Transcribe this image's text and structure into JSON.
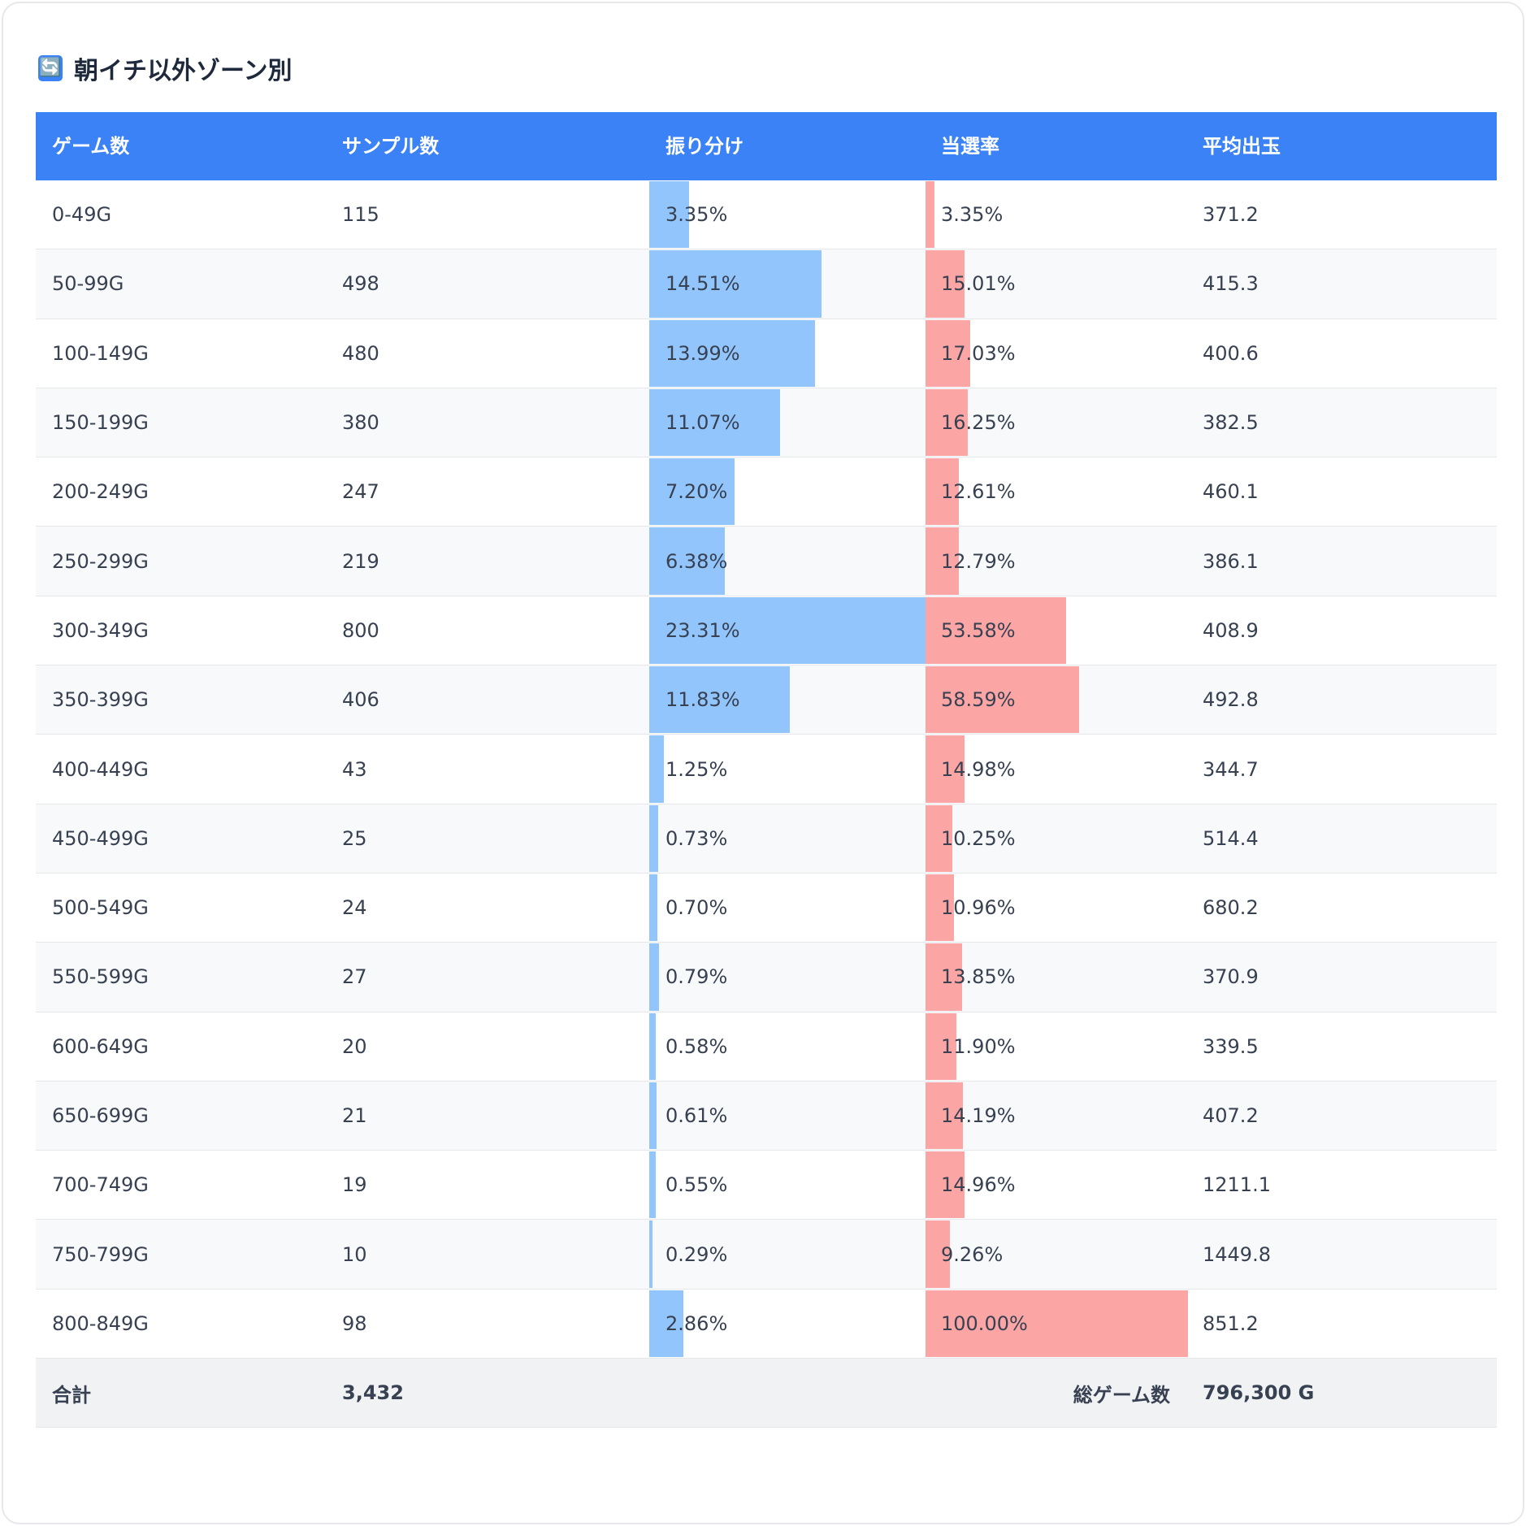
{
  "title": {
    "icon": "refresh-icon",
    "glyph": "🔄",
    "text": "朝イチ以外ゾーン別"
  },
  "colors": {
    "header": "#3b82f6",
    "bar_dist": "#93c5fd",
    "bar_rate": "#fca5a5"
  },
  "headers": [
    "ゲーム数",
    "サンプル数",
    "振り分け",
    "当選率",
    "平均出玉"
  ],
  "rows": [
    {
      "zone": "0-49G",
      "samples": "115",
      "dist": "3.35%",
      "rate": "3.35%",
      "avg": "371.2"
    },
    {
      "zone": "50-99G",
      "samples": "498",
      "dist": "14.51%",
      "rate": "15.01%",
      "avg": "415.3"
    },
    {
      "zone": "100-149G",
      "samples": "480",
      "dist": "13.99%",
      "rate": "17.03%",
      "avg": "400.6"
    },
    {
      "zone": "150-199G",
      "samples": "380",
      "dist": "11.07%",
      "rate": "16.25%",
      "avg": "382.5"
    },
    {
      "zone": "200-249G",
      "samples": "247",
      "dist": "7.20%",
      "rate": "12.61%",
      "avg": "460.1"
    },
    {
      "zone": "250-299G",
      "samples": "219",
      "dist": "6.38%",
      "rate": "12.79%",
      "avg": "386.1"
    },
    {
      "zone": "300-349G",
      "samples": "800",
      "dist": "23.31%",
      "rate": "53.58%",
      "avg": "408.9"
    },
    {
      "zone": "350-399G",
      "samples": "406",
      "dist": "11.83%",
      "rate": "58.59%",
      "avg": "492.8"
    },
    {
      "zone": "400-449G",
      "samples": "43",
      "dist": "1.25%",
      "rate": "14.98%",
      "avg": "344.7"
    },
    {
      "zone": "450-499G",
      "samples": "25",
      "dist": "0.73%",
      "rate": "10.25%",
      "avg": "514.4"
    },
    {
      "zone": "500-549G",
      "samples": "24",
      "dist": "0.70%",
      "rate": "10.96%",
      "avg": "680.2"
    },
    {
      "zone": "550-599G",
      "samples": "27",
      "dist": "0.79%",
      "rate": "13.85%",
      "avg": "370.9"
    },
    {
      "zone": "600-649G",
      "samples": "20",
      "dist": "0.58%",
      "rate": "11.90%",
      "avg": "339.5"
    },
    {
      "zone": "650-699G",
      "samples": "21",
      "dist": "0.61%",
      "rate": "14.19%",
      "avg": "407.2"
    },
    {
      "zone": "700-749G",
      "samples": "19",
      "dist": "0.55%",
      "rate": "14.96%",
      "avg": "1211.1"
    },
    {
      "zone": "750-799G",
      "samples": "10",
      "dist": "0.29%",
      "rate": "9.26%",
      "avg": "1449.8"
    },
    {
      "zone": "800-849G",
      "samples": "98",
      "dist": "2.86%",
      "rate": "100.00%",
      "avg": "851.2"
    }
  ],
  "footer": {
    "label": "合計",
    "samples": "3,432",
    "games_label": "総ゲーム数",
    "games": "796,300 G"
  }
}
